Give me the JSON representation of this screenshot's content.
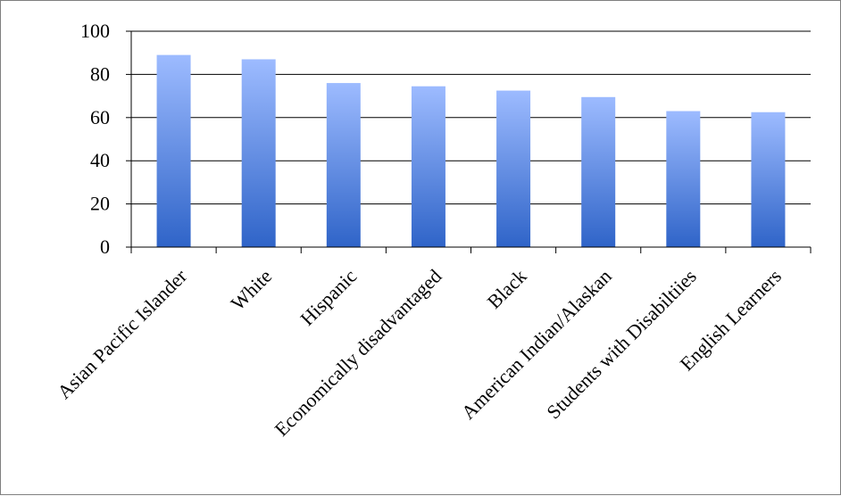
{
  "chart_data": {
    "type": "bar",
    "title": "",
    "xlabel": "",
    "ylabel": "",
    "ylim": [
      0,
      100
    ],
    "yticks": [
      0,
      20,
      40,
      60,
      80,
      100
    ],
    "grid": true,
    "legend": "none",
    "categories": [
      "Asian Pacific Islander",
      "White",
      "Hispanic",
      "Economically disadvantaged",
      "Black",
      "American Indian/Alaskan",
      "Students with Disabiltiies",
      "English Learners"
    ],
    "values": [
      89,
      87,
      76,
      74.5,
      72.5,
      69.5,
      63,
      62.5
    ],
    "colors": {
      "bar_top": "#9dbbff",
      "bar_bottom": "#2f64c8",
      "grid": "#000000"
    }
  }
}
